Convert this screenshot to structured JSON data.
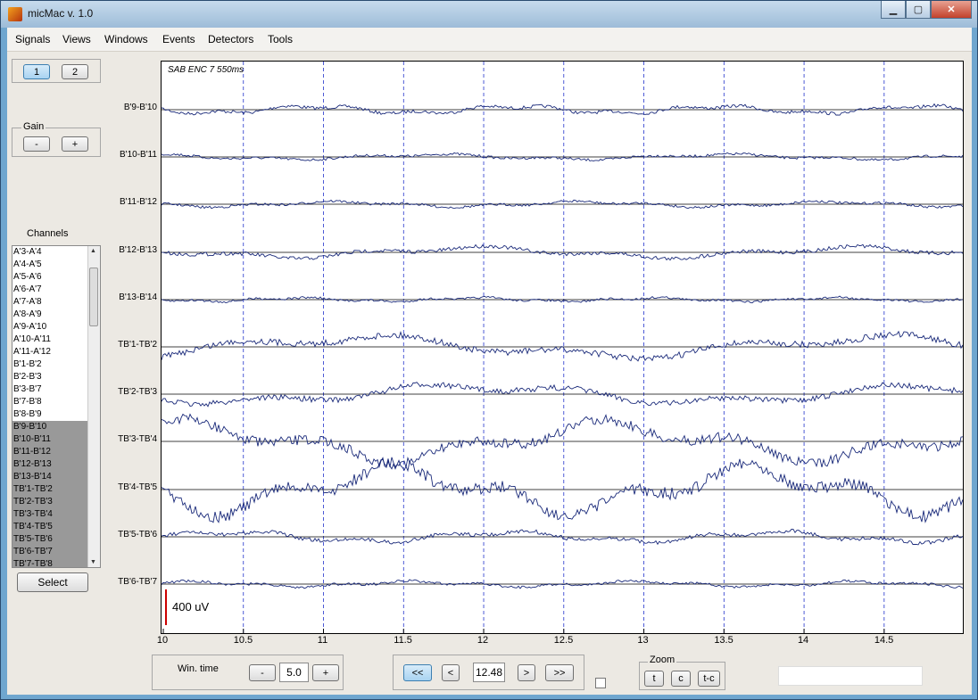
{
  "window": {
    "title": "micMac v. 1.0",
    "minimize": "▁",
    "maximize": "▢",
    "close": "✕"
  },
  "menu": [
    "Signals",
    "Views",
    "Windows",
    "Events",
    "Detectors",
    "Tools"
  ],
  "page_buttons": {
    "page1": "1",
    "page2": "2"
  },
  "gain": {
    "label": "Gain",
    "minus": "-",
    "plus": "+"
  },
  "channels": {
    "label": "Channels",
    "items": [
      "A'3-A'4",
      "A'4-A'5",
      "A'5-A'6",
      "A'6-A'7",
      "A'7-A'8",
      "A'8-A'9",
      "A'9-A'10",
      "A'10-A'11",
      "A'11-A'12",
      "B'1-B'2",
      "B'2-B'3",
      "B'3-B'7",
      "B'7-B'8",
      "B'8-B'9",
      "B'9-B'10",
      "B'10-B'11",
      "B'11-B'12",
      "B'12-B'13",
      "B'13-B'14",
      "TB'1-TB'2",
      "TB'2-TB'3",
      "TB'3-TB'4",
      "TB'4-TB'5",
      "TB'5-TB'6",
      "TB'6-TB'7",
      "TB'7-TB'8"
    ],
    "selected_from": 14,
    "select_button": "Select"
  },
  "plot": {
    "annotation": "SAB ENC 7 550ms",
    "scale_label": "400 uV",
    "channel_labels": [
      "B'9-B'10",
      "B'10-B'11",
      "B'11-B'12",
      "B'12-B'13",
      "B'13-B'14",
      "TB'1-TB'2",
      "TB'2-TB'3",
      "TB'3-TB'4",
      "TB'4-TB'5",
      "TB'5-TB'6",
      "TB'6-TB'7"
    ],
    "x_ticks": [
      "10",
      "10.5",
      "11",
      "11.5",
      "12",
      "12.5",
      "13",
      "13.5",
      "14",
      "14.5"
    ],
    "x_range": [
      10,
      14.98
    ],
    "trace_color": "#1a2a7a",
    "grid_color": "#2233cc"
  },
  "controls": {
    "win_time_label": "Win. time",
    "win_minus": "-",
    "win_value": "5.0",
    "win_plus": "+",
    "nav_first": "<<",
    "nav_prev": "<",
    "nav_value": "12.48",
    "nav_next": ">",
    "nav_last": ">>",
    "zoom_label": "Zoom",
    "zoom_t": "t",
    "zoom_c": "c",
    "zoom_tc": "t-c"
  }
}
